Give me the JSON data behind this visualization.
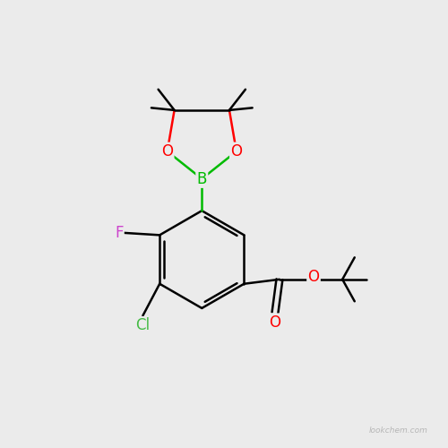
{
  "bg_color": "#ebebeb",
  "bond_color": "#000000",
  "bond_width": 1.8,
  "atom_colors": {
    "C": "#000000",
    "O": "#ff0000",
    "B": "#00bb00",
    "F": "#cc44cc",
    "Cl": "#44bb44",
    "N": "#0000ff"
  },
  "font_size": 12,
  "watermark": "lookchem.com"
}
